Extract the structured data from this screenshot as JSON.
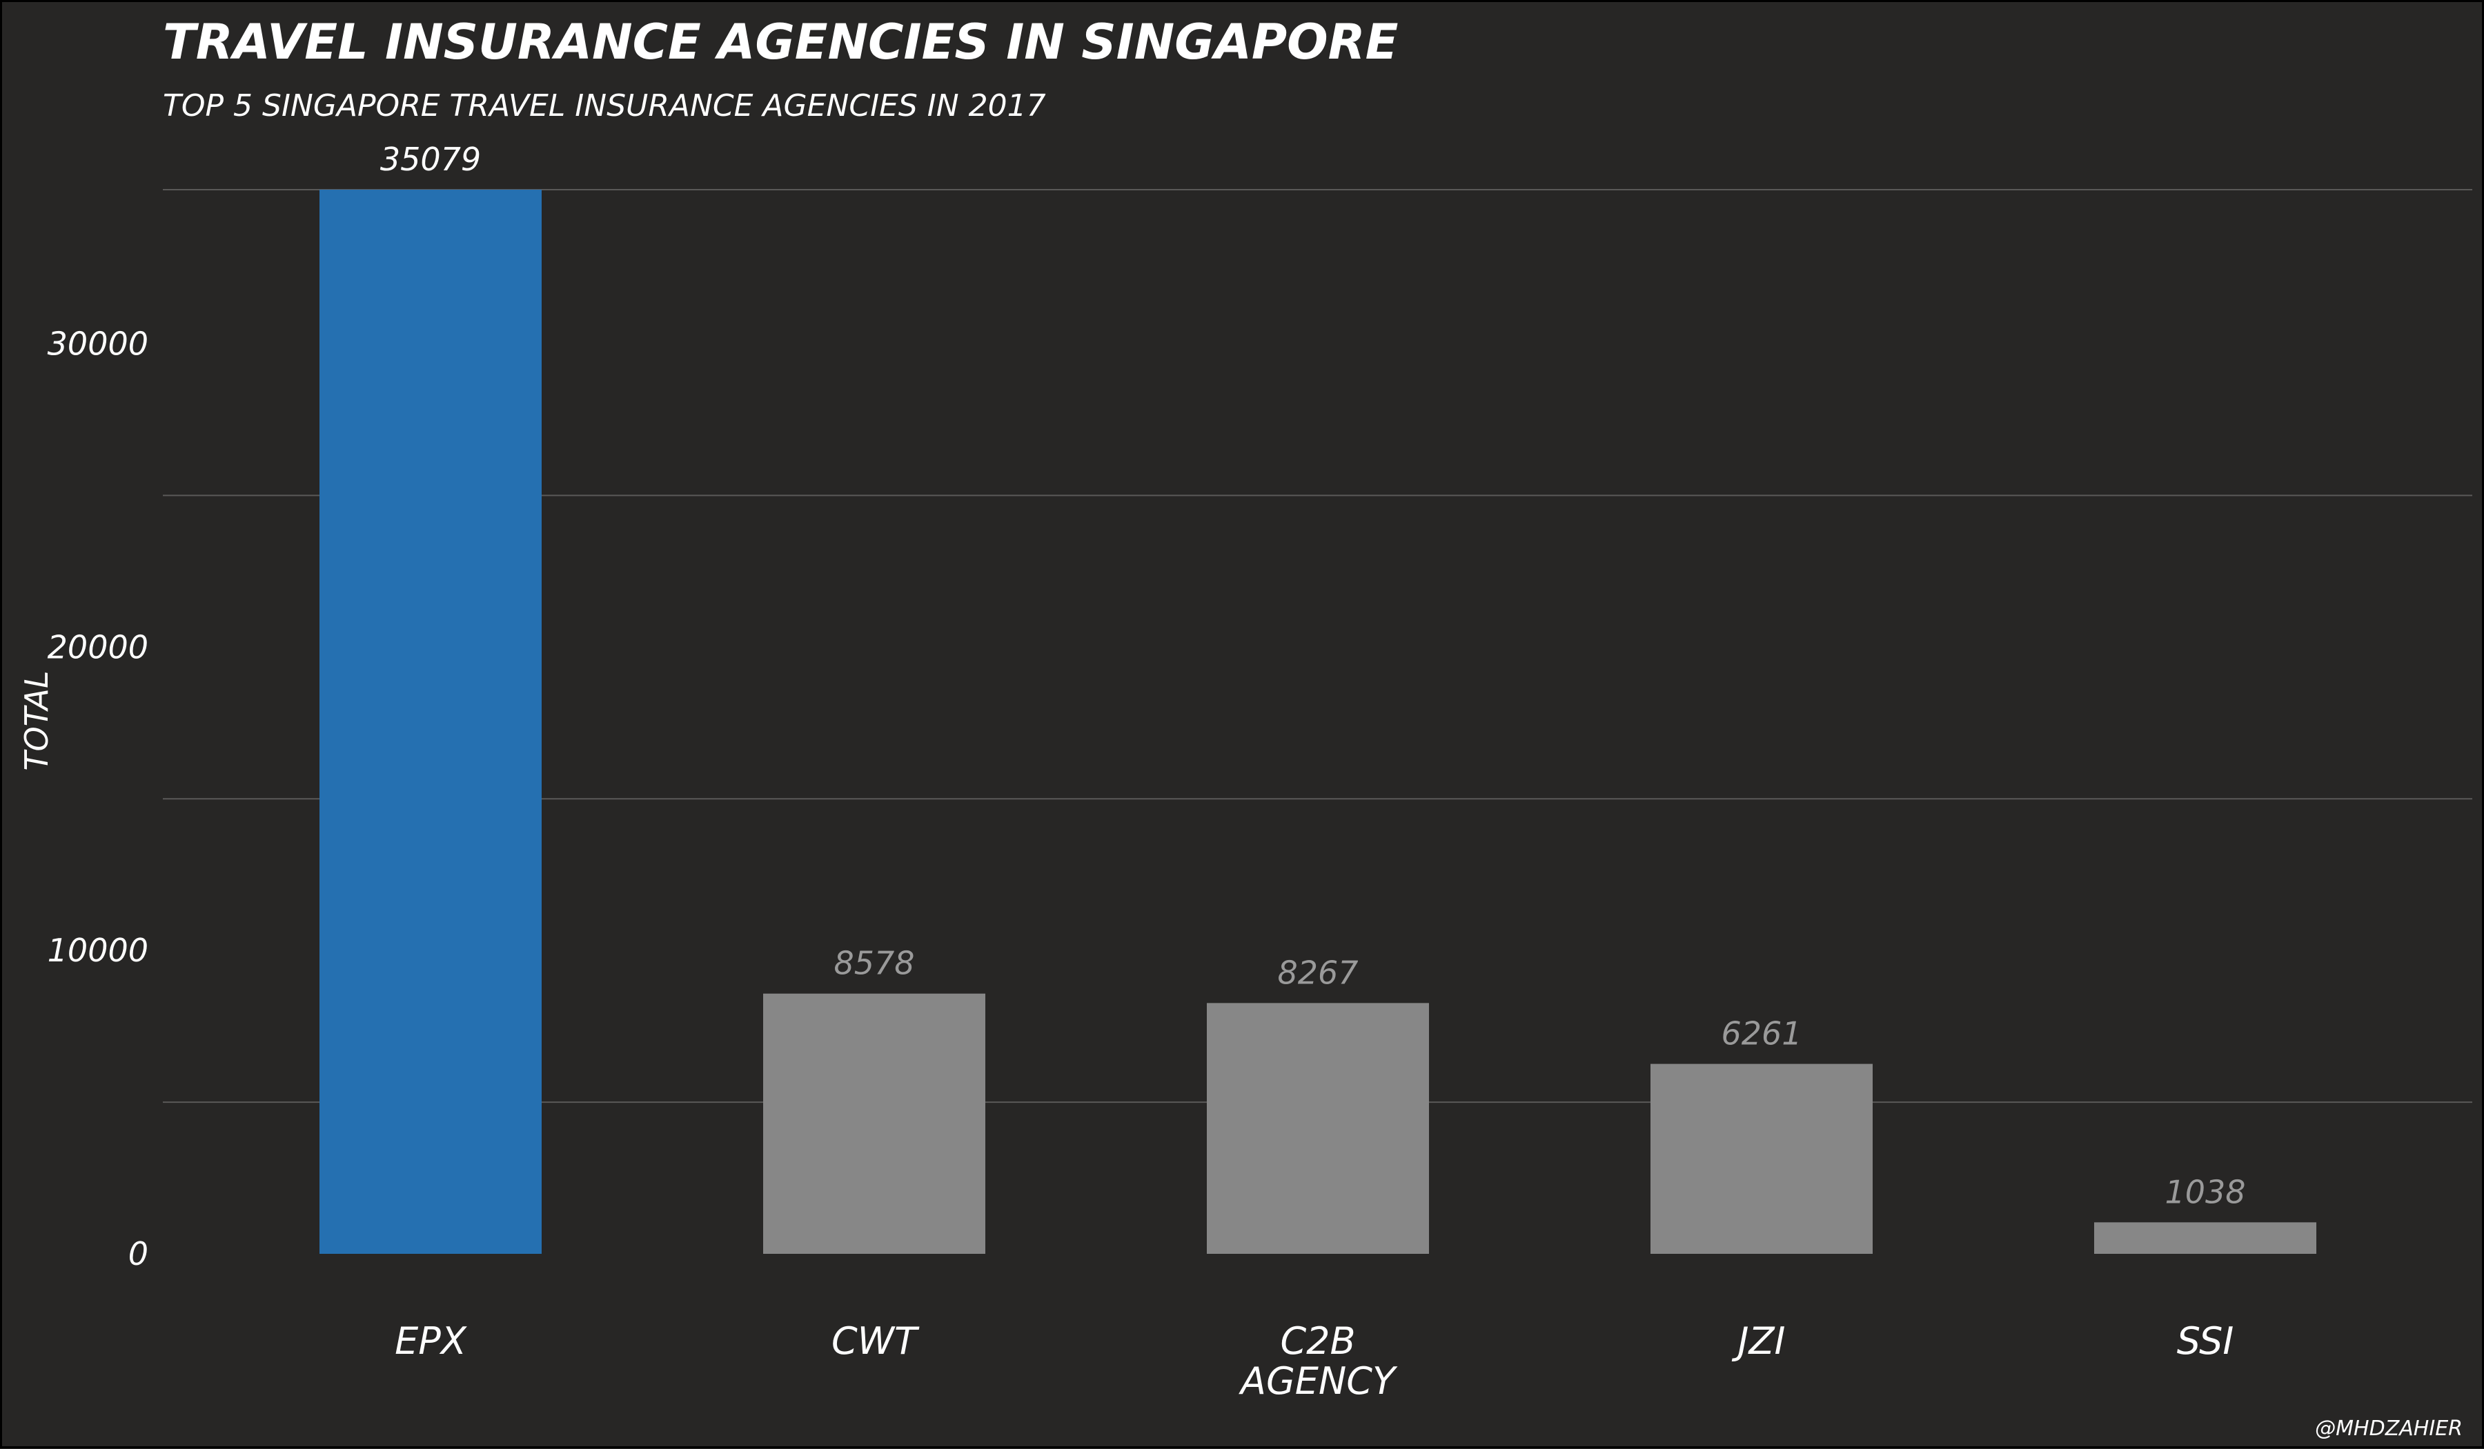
{
  "chart_data": {
    "type": "bar",
    "title": "TRAVEL INSURANCE AGENCIES IN SINGAPORE",
    "subtitle": "TOP 5 SINGAPORE TRAVEL INSURANCE AGENCIES IN 2017",
    "categories": [
      "EPX",
      "CWT",
      "C2B AGENCY",
      "JZI",
      "SSI"
    ],
    "values": [
      35079,
      8578,
      8267,
      6261,
      1038
    ],
    "data_labels": [
      "35079",
      "8578",
      "8267",
      "6261",
      "1038"
    ],
    "xlabel": "",
    "ylabel": "TOTAL",
    "ylim": [
      0,
      35079
    ],
    "yticks": [
      0,
      10000,
      20000,
      30000
    ],
    "ytick_labels": [
      "0",
      "10000",
      "20000",
      "30000"
    ],
    "gridlines_at": [
      5000,
      15000,
      25000,
      35079
    ],
    "grid": true,
    "legend": "none",
    "highlight_category": "EPX",
    "colors": {
      "background": "#272625",
      "highlight_bar": "#2570b1",
      "bar": "#878787",
      "highlight_label": "#ffffff",
      "label": "#9a9a9a"
    }
  },
  "caption": "@MHDZAHIER"
}
